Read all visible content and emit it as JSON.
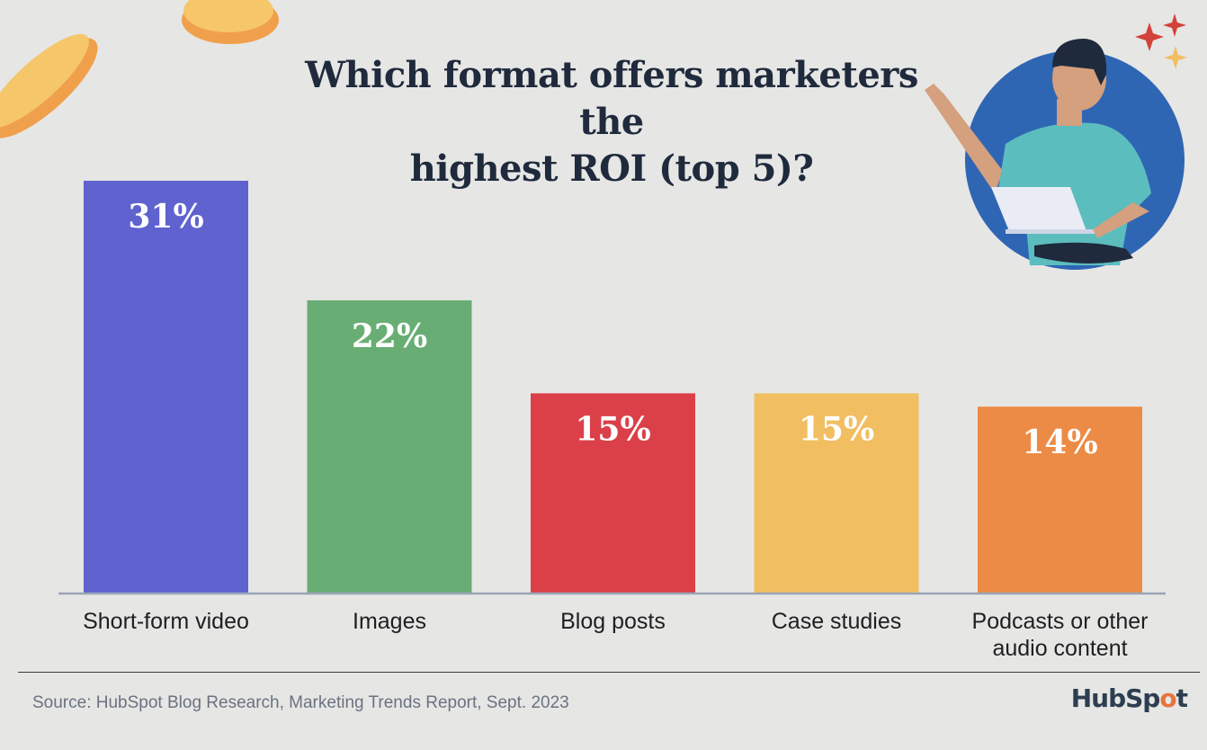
{
  "title_line1": "Which format offers marketers the",
  "title_line2": "highest ROI (top 5)?",
  "source": "Source: HubSpot Blog Research, Marketing Trends Report, Sept. 2023",
  "brand": {
    "prefix": "HubSp",
    "o": "o",
    "suffix": "t"
  },
  "colors": {
    "background": "#e6e6e5",
    "axis": "#9aa5b8",
    "label_text": "#1f1f1f",
    "value_text": "#ffffff"
  },
  "chart_data": {
    "type": "bar",
    "title": "Which format offers marketers the highest ROI (top 5)?",
    "categories": [
      [
        "Short-form video"
      ],
      [
        "Images"
      ],
      [
        "Blog posts"
      ],
      [
        "Case studies"
      ],
      [
        "Podcasts or other",
        "audio content"
      ]
    ],
    "values": [
      31,
      22,
      15,
      15,
      14
    ],
    "value_labels": [
      "31%",
      "22%",
      "15%",
      "15%",
      "14%"
    ],
    "bar_colors": [
      "#5f62cf",
      "#68ae74",
      "#db4049",
      "#f2be62",
      "#ec8b45"
    ],
    "ylim": [
      0,
      31
    ],
    "grid": false,
    "legend": "none",
    "xlabel": "",
    "ylabel": ""
  }
}
